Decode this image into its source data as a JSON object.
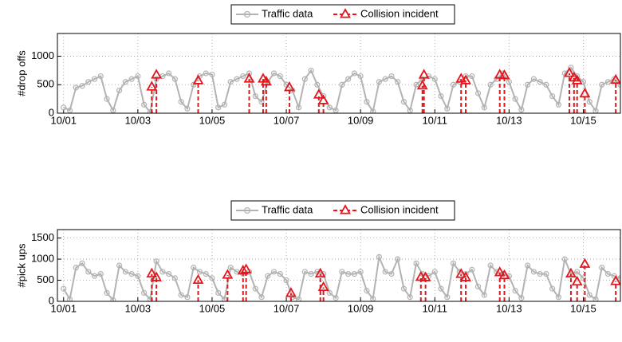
{
  "chart_data": [
    {
      "type": "line",
      "ylabel": "#drop offs",
      "xlim": [
        -4,
        360
      ],
      "ylim": [
        0,
        1400
      ],
      "yticks": [
        0,
        500,
        1000
      ],
      "xticks": [
        {
          "value": 0,
          "label": "10/01"
        },
        {
          "value": 48,
          "label": "10/03"
        },
        {
          "value": 96,
          "label": "10/05"
        },
        {
          "value": 144,
          "label": "10/07"
        },
        {
          "value": 192,
          "label": "10/09"
        },
        {
          "value": 240,
          "label": "10/11"
        },
        {
          "value": 288,
          "label": "10/13"
        },
        {
          "value": 336,
          "label": "10/15"
        }
      ],
      "grid": true,
      "series": [
        {
          "name": "Traffic data",
          "color": "#b3b3b3",
          "x": [
            0,
            4,
            8,
            12,
            16,
            20,
            24,
            28,
            32,
            36,
            40,
            44,
            48,
            52,
            56,
            60,
            64,
            68,
            72,
            76,
            80,
            84,
            88,
            92,
            96,
            100,
            104,
            108,
            112,
            116,
            120,
            124,
            128,
            132,
            136,
            140,
            144,
            148,
            152,
            156,
            160,
            164,
            168,
            172,
            176,
            180,
            184,
            188,
            192,
            196,
            200,
            204,
            208,
            212,
            216,
            220,
            224,
            228,
            232,
            236,
            240,
            244,
            248,
            252,
            256,
            260,
            264,
            268,
            272,
            276,
            280,
            284,
            288,
            292,
            296,
            300,
            304,
            308,
            312,
            316,
            320,
            324,
            328,
            332,
            336,
            340,
            344,
            348,
            352,
            356,
            360
          ],
          "values": [
            100,
            50,
            450,
            480,
            550,
            600,
            650,
            250,
            50,
            400,
            550,
            600,
            650,
            150,
            20,
            600,
            650,
            700,
            600,
            200,
            80,
            500,
            650,
            700,
            680,
            100,
            150,
            550,
            600,
            650,
            700,
            300,
            200,
            550,
            700,
            650,
            500,
            400,
            100,
            600,
            750,
            500,
            300,
            100,
            50,
            500,
            600,
            700,
            650,
            200,
            30,
            550,
            600,
            650,
            550,
            200,
            50,
            500,
            600,
            650,
            600,
            300,
            80,
            500,
            550,
            650,
            650,
            350,
            100,
            500,
            600,
            700,
            550,
            250,
            60,
            500,
            600,
            550,
            500,
            300,
            150,
            700,
            800,
            650,
            550,
            200,
            40,
            500,
            550,
            600,
            500
          ]
        },
        {
          "name": "Collision incident",
          "color": "#e8141b",
          "x": [
            57,
            60,
            87,
            120,
            129,
            131,
            146,
            165,
            168,
            232,
            233,
            257,
            260,
            282,
            285,
            327,
            330,
            332,
            337,
            357
          ],
          "values": [
            460,
            670,
            570,
            600,
            600,
            550,
            450,
            320,
            220,
            480,
            670,
            600,
            570,
            670,
            660,
            700,
            620,
            570,
            340,
            580
          ]
        }
      ]
    },
    {
      "type": "line",
      "ylabel": "#pick ups",
      "xlim": [
        -4,
        360
      ],
      "ylim": [
        0,
        1700
      ],
      "yticks": [
        0,
        500,
        1000,
        1500
      ],
      "xticks": [
        {
          "value": 0,
          "label": "10/01"
        },
        {
          "value": 48,
          "label": "10/03"
        },
        {
          "value": 96,
          "label": "10/05"
        },
        {
          "value": 144,
          "label": "10/07"
        },
        {
          "value": 192,
          "label": "10/09"
        },
        {
          "value": 240,
          "label": "10/11"
        },
        {
          "value": 288,
          "label": "10/13"
        },
        {
          "value": 336,
          "label": "10/15"
        }
      ],
      "grid": true,
      "series": [
        {
          "name": "Traffic data",
          "color": "#b3b3b3",
          "x": [
            0,
            4,
            8,
            12,
            16,
            20,
            24,
            28,
            32,
            36,
            40,
            44,
            48,
            52,
            56,
            60,
            64,
            68,
            72,
            76,
            80,
            84,
            88,
            92,
            96,
            100,
            104,
            108,
            112,
            116,
            120,
            124,
            128,
            132,
            136,
            140,
            144,
            148,
            152,
            156,
            160,
            164,
            168,
            172,
            176,
            180,
            184,
            188,
            192,
            196,
            200,
            204,
            208,
            212,
            216,
            220,
            224,
            228,
            232,
            236,
            240,
            244,
            248,
            252,
            256,
            260,
            264,
            268,
            272,
            276,
            280,
            284,
            288,
            292,
            296,
            300,
            304,
            308,
            312,
            316,
            320,
            324,
            328,
            332,
            336,
            340,
            344,
            348,
            352,
            356,
            360
          ],
          "values": [
            300,
            50,
            800,
            900,
            700,
            600,
            650,
            200,
            30,
            850,
            700,
            650,
            600,
            200,
            50,
            950,
            700,
            650,
            550,
            150,
            100,
            800,
            700,
            650,
            550,
            200,
            50,
            800,
            700,
            650,
            700,
            300,
            100,
            600,
            700,
            650,
            500,
            100,
            50,
            700,
            650,
            700,
            650,
            200,
            80,
            700,
            650,
            650,
            700,
            250,
            60,
            1050,
            700,
            650,
            1000,
            300,
            100,
            900,
            650,
            600,
            700,
            300,
            100,
            900,
            700,
            650,
            750,
            350,
            150,
            850,
            700,
            650,
            600,
            250,
            80,
            850,
            700,
            650,
            650,
            300,
            100,
            1000,
            650,
            700,
            550,
            150,
            50,
            800,
            650,
            600,
            550
          ]
        },
        {
          "name": "Collision incident",
          "color": "#e8141b",
          "x": [
            57,
            60,
            87,
            106,
            116,
            118,
            147,
            166,
            168,
            231,
            234,
            257,
            260,
            282,
            285,
            328,
            332,
            337,
            357
          ],
          "values": [
            650,
            560,
            500,
            620,
            720,
            750,
            190,
            650,
            330,
            570,
            560,
            640,
            560,
            680,
            610,
            650,
            460,
            880,
            470
          ]
        }
      ]
    }
  ]
}
